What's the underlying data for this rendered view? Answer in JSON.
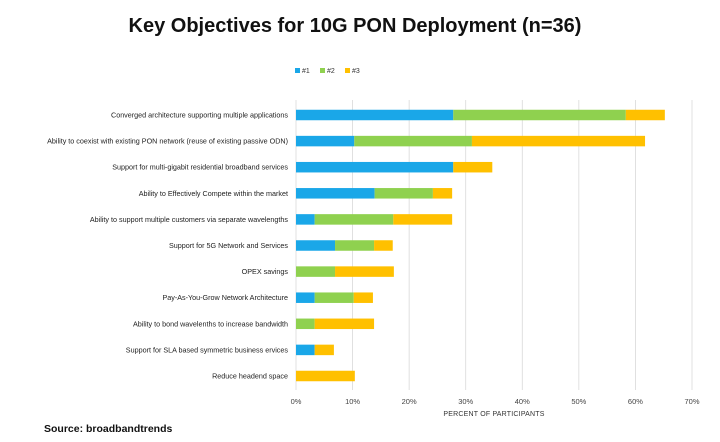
{
  "chart_data": {
    "type": "bar",
    "orientation": "horizontal",
    "stacked": true,
    "title": "Key Objectives for 10G PON Deployment (n=36)",
    "xlabel": "PERCENT OF PARTICIPANTS",
    "ylabel": "",
    "xlim": [
      0,
      70
    ],
    "x_ticks": [
      "0%",
      "10%",
      "20%",
      "30%",
      "40%",
      "50%",
      "60%",
      "70%"
    ],
    "legend_position": "top",
    "categories": [
      "Converged architecture supporting multiple applications",
      "Ability to coexist with existing PON network (reuse of existing passive ODN)",
      "Support for multi-gigabit residential broadband services",
      "Ability to Effectively Compete within the market",
      "Ability to support multiple customers via separate wavelengths",
      "Support for 5G Network and Services",
      "OPEX savings",
      "Pay-As-You-Grow Network Architecture",
      "Ability to bond wavelenths to increase bandwidth",
      "Support for SLA based symmetric business ervices",
      "Reduce headend space"
    ],
    "series": [
      {
        "name": "#1",
        "color": "#1aa7e8",
        "values": [
          27.8,
          10.3,
          27.8,
          13.9,
          3.3,
          6.9,
          0,
          3.3,
          0,
          3.3,
          0
        ]
      },
      {
        "name": "#2",
        "color": "#8fd14f",
        "values": [
          30.5,
          20.8,
          0,
          10.3,
          13.9,
          6.9,
          6.9,
          6.9,
          3.3,
          0,
          0
        ]
      },
      {
        "name": "#3",
        "color": "#ffc000",
        "values": [
          6.9,
          30.6,
          6.9,
          3.4,
          10.4,
          3.3,
          10.4,
          3.4,
          10.5,
          3.4,
          10.4
        ]
      }
    ]
  },
  "source": "Source: broadbandtrends"
}
